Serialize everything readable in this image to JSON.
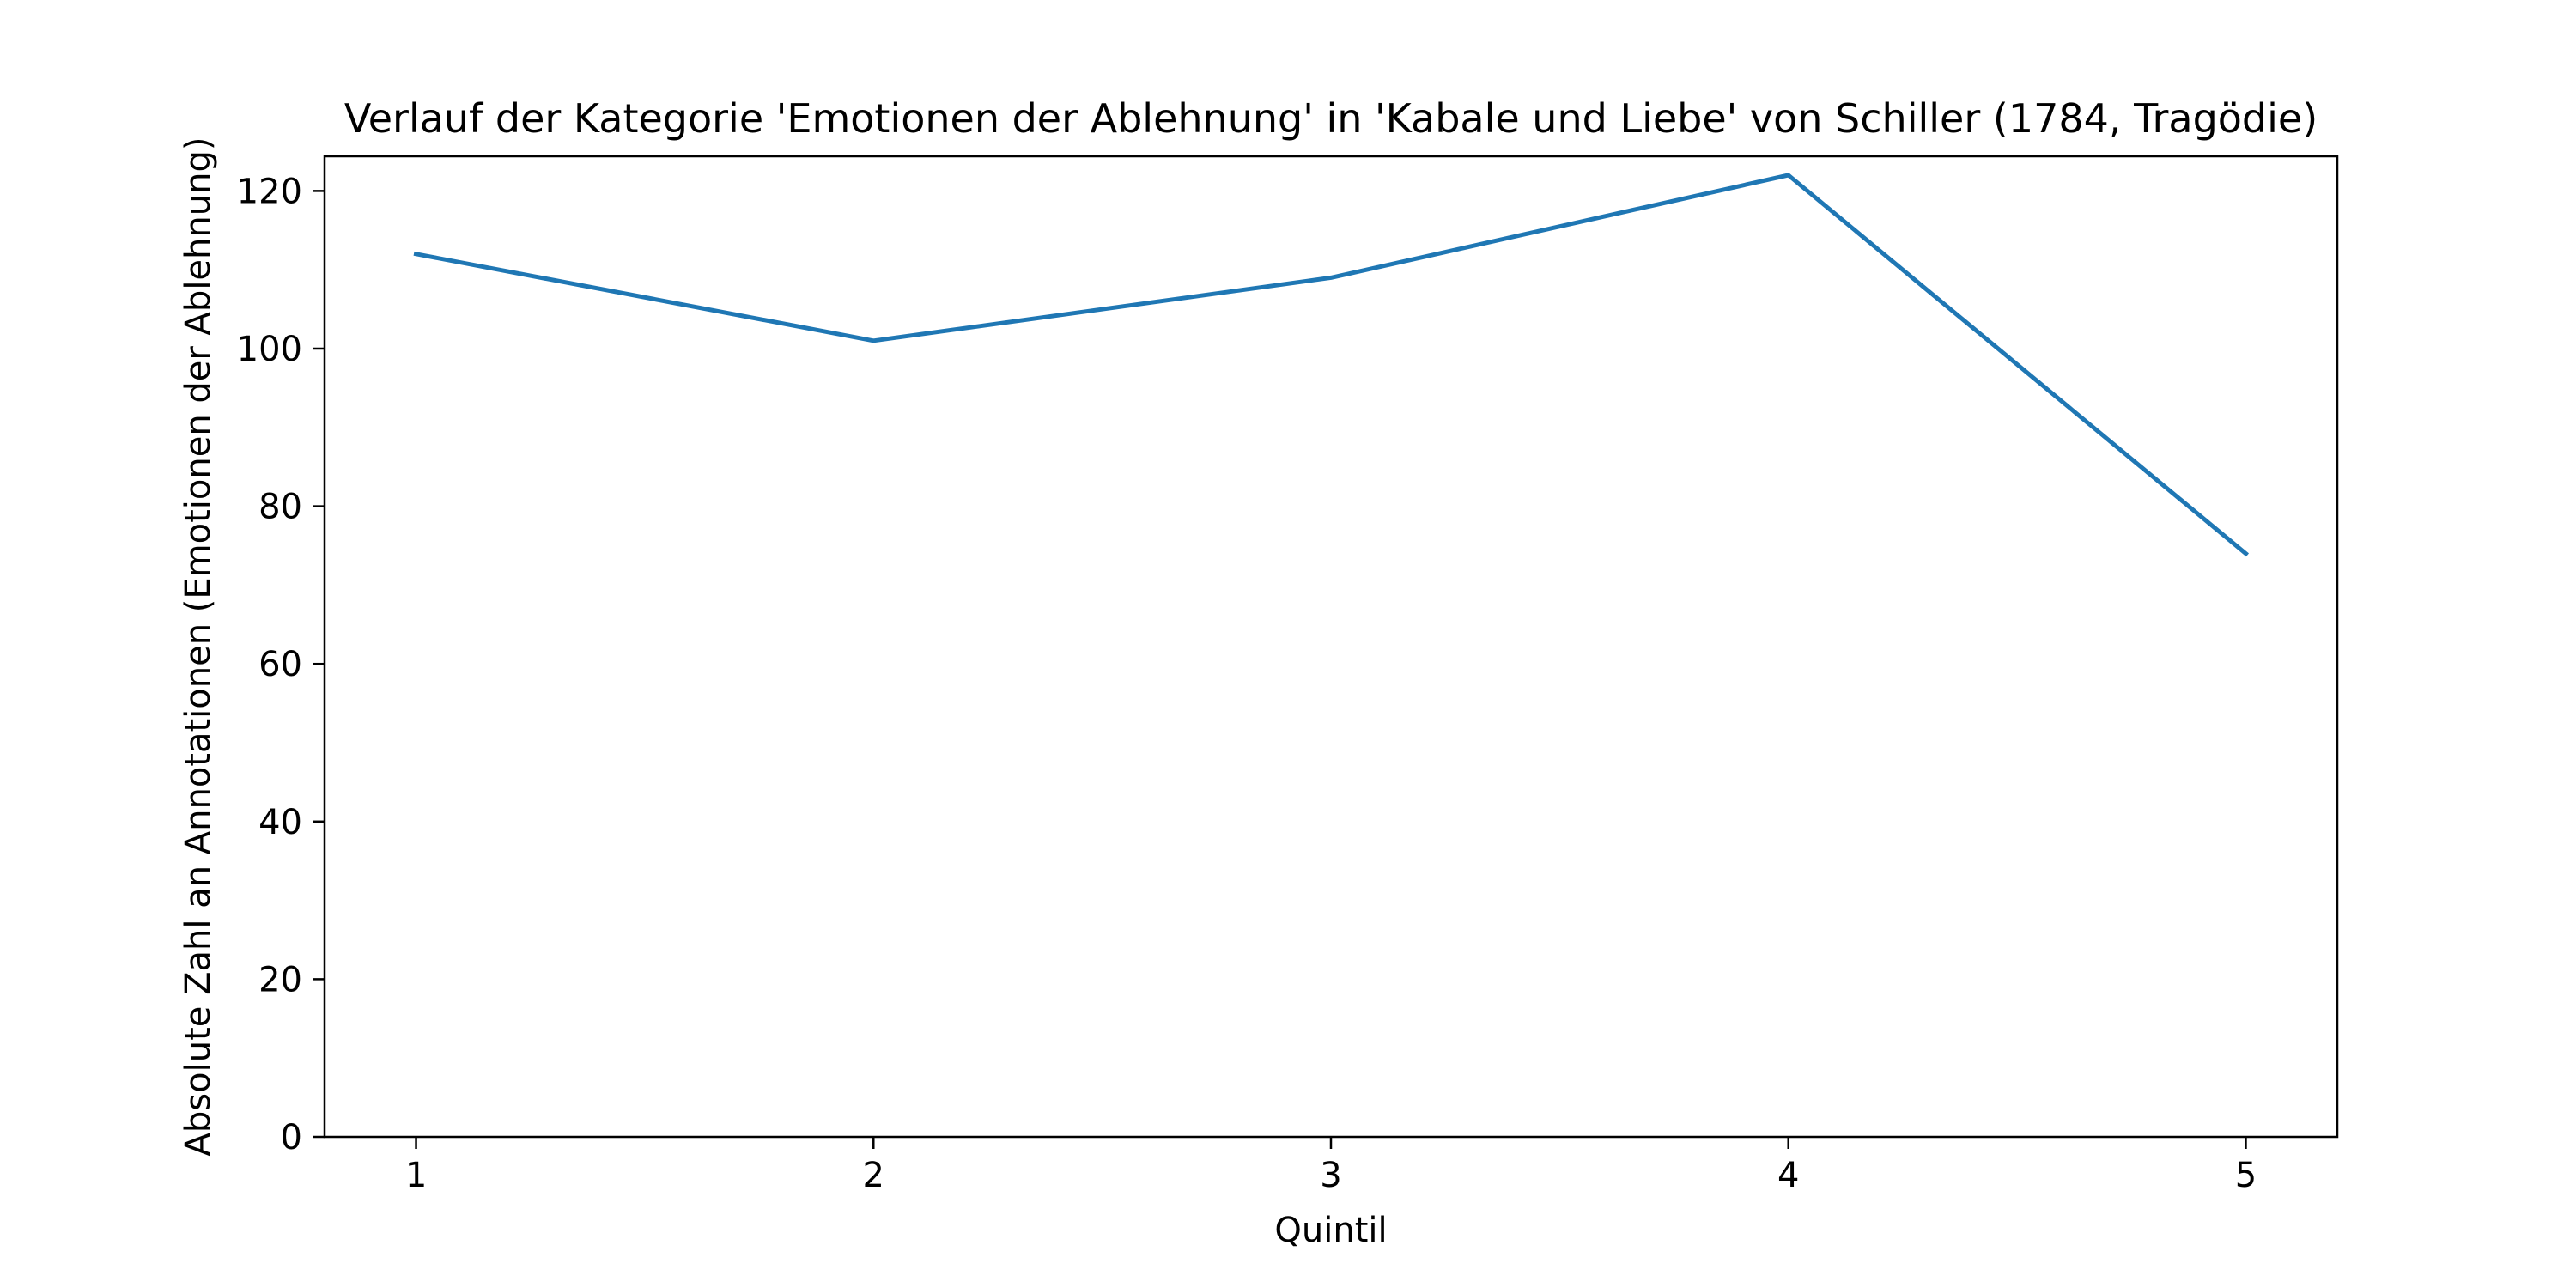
{
  "chart_data": {
    "type": "line",
    "title": "Verlauf der Kategorie 'Emotionen der Ablehnung' in 'Kabale und Liebe' von Schiller (1784, Tragödie)",
    "xlabel": "Quintil",
    "ylabel": "Absolute Zahl an Annotationen (Emotionen der Ablehnung)",
    "x": [
      1,
      2,
      3,
      4,
      5
    ],
    "series": [
      {
        "values": [
          112,
          101,
          109,
          122,
          74
        ],
        "color": "#1f77b4"
      }
    ],
    "xlim": [
      0.8,
      5.2
    ],
    "ylim": [
      0,
      124.4
    ],
    "x_ticks": [
      "1",
      "2",
      "3",
      "4",
      "5"
    ],
    "y_ticks": [
      "0",
      "20",
      "40",
      "60",
      "80",
      "100",
      "120"
    ],
    "grid": false,
    "legend": "none"
  }
}
